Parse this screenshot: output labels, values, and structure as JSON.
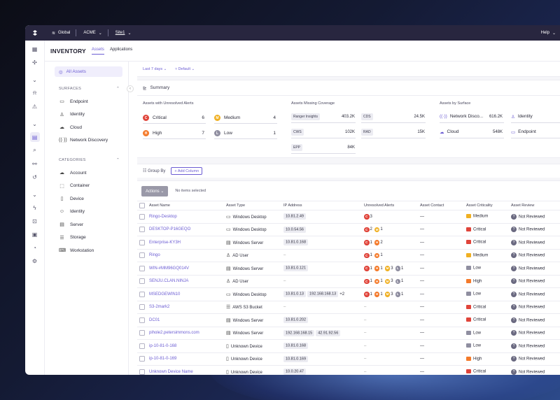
{
  "colors": {
    "accent": "#6c5dd3",
    "critical": "#e0443a",
    "high": "#f47a2a",
    "medium": "#f0b022",
    "low": "#8f8ea0",
    "unknown": "#6a6980",
    "topbar": "#28263f"
  },
  "topbar": {
    "org": "Global",
    "account": "ACME",
    "site": "Site1",
    "help": "Help"
  },
  "page": {
    "title": "INVENTORY",
    "tabs": [
      {
        "label": "Assets"
      },
      {
        "label": "Applications"
      }
    ]
  },
  "sidebar": {
    "all_assets": "All Assets",
    "surfaces_heading": "SURFACES",
    "surfaces": [
      {
        "label": "Endpoint",
        "icon": "monitor-icon"
      },
      {
        "label": "Identity",
        "icon": "user-icon"
      },
      {
        "label": "Cloud",
        "icon": "cloud-icon"
      },
      {
        "label": "Network Discovery",
        "icon": "signal-icon"
      }
    ],
    "categories_heading": "CATEGORIES",
    "categories": [
      {
        "label": "Account",
        "icon": "cloud-icon"
      },
      {
        "label": "Container",
        "icon": "box-icon"
      },
      {
        "label": "Device",
        "icon": "device-icon"
      },
      {
        "label": "Identity",
        "icon": "user-circle-icon"
      },
      {
        "label": "Server",
        "icon": "server-icon"
      },
      {
        "label": "Storage",
        "icon": "storage-icon"
      },
      {
        "label": "Workstation",
        "icon": "laptop-icon"
      }
    ]
  },
  "filters": {
    "time": "Last 7 days",
    "view": "Default"
  },
  "summary": {
    "title": "Summary",
    "alerts": {
      "title": "Assets with Unresolved Alerts",
      "items": [
        {
          "label": "Critical",
          "value": "6",
          "badge": "C"
        },
        {
          "label": "Medium",
          "value": "4",
          "badge": "M"
        },
        {
          "label": "High",
          "value": "7",
          "badge": "H"
        },
        {
          "label": "Low",
          "value": "1",
          "badge": "L"
        }
      ]
    },
    "coverage": {
      "title": "Assets Missing Coverage",
      "items": [
        {
          "label": "Ranger Insights",
          "value": "403.2K"
        },
        {
          "label": "CDS",
          "value": "24.5K"
        },
        {
          "label": "CWS",
          "value": "102K"
        },
        {
          "label": "RAD",
          "value": "15K"
        },
        {
          "label": "EPP",
          "value": "84K"
        }
      ]
    },
    "surface": {
      "title": "Assets by Surface",
      "items": [
        {
          "label": "Network Disco...",
          "value": "616.2K"
        },
        {
          "label": "Identity",
          "value": ""
        },
        {
          "label": "Cloud",
          "value": "548K"
        },
        {
          "label": "Endpoint",
          "value": ""
        }
      ]
    }
  },
  "toolbar": {
    "group_by": "Group By",
    "add_column": "+ Add Column",
    "actions": "Actions",
    "selection": "No items selected"
  },
  "table": {
    "columns": [
      "Asset Name",
      "Asset Type",
      "IP Address",
      "Unresolved Alerts",
      "Asset Contact",
      "Asset Criticality",
      "Asset Review"
    ],
    "rows": [
      {
        "name": "Ringo-Desktop",
        "type": "Windows Desktop",
        "ticon": "desktop-icon",
        "ips": [
          "10.81.2.49"
        ],
        "alerts": [
          {
            "s": "C",
            "n": "3"
          }
        ],
        "contact": "—",
        "crit": "Medium",
        "review": "Not Reviewed"
      },
      {
        "name": "DESKTOP-P16GEQO",
        "type": "Windows Desktop",
        "ticon": "desktop-icon",
        "ips": [
          "10.0.54.56"
        ],
        "alerts": [
          {
            "s": "C",
            "n": "2"
          },
          {
            "s": "M",
            "n": "1"
          }
        ],
        "contact": "—",
        "crit": "Critical",
        "review": "Not Reviewed"
      },
      {
        "name": "Enterprise-KY3H",
        "type": "Windows Server",
        "ticon": "server-icon",
        "ips": [
          "10.81.0.168"
        ],
        "alerts": [
          {
            "s": "C",
            "n": "1"
          },
          {
            "s": "H",
            "n": "2"
          }
        ],
        "contact": "—",
        "crit": "Critical",
        "review": "Not Reviewed"
      },
      {
        "name": "Ringo",
        "type": "AD User",
        "ticon": "user-icon",
        "ips": [],
        "alerts": [
          {
            "s": "C",
            "n": "1"
          },
          {
            "s": "H",
            "n": "1"
          }
        ],
        "contact": "—",
        "crit": "Medium",
        "review": "Not Reviewed"
      },
      {
        "name": "WIN-#MM96GQ014V",
        "type": "Windows Server",
        "ticon": "server-icon",
        "ips": [
          "10.81.0.121"
        ],
        "alerts": [
          {
            "s": "C",
            "n": "1"
          },
          {
            "s": "H",
            "n": "1"
          },
          {
            "s": "M",
            "n": "3"
          },
          {
            "s": "L",
            "n": "1"
          }
        ],
        "contact": "—",
        "crit": "Low",
        "review": "Not Reviewed"
      },
      {
        "name": "SENJU.CLAN.NINJA",
        "type": "AD User",
        "ticon": "user-icon",
        "ips": [],
        "alerts": [
          {
            "s": "C",
            "n": "1"
          },
          {
            "s": "H",
            "n": "1"
          },
          {
            "s": "M",
            "n": "3"
          },
          {
            "s": "L",
            "n": "1"
          }
        ],
        "contact": "—",
        "crit": "High",
        "review": "Not Reviewed"
      },
      {
        "name": "MSEDGEWIN10",
        "type": "Windows Desktop",
        "ticon": "desktop-icon",
        "ips": [
          "10.81.0.13",
          "192.168.168.13"
        ],
        "ipmore": "+2",
        "alerts": [
          {
            "s": "C",
            "n": "1"
          },
          {
            "s": "H",
            "n": "1"
          },
          {
            "s": "M",
            "n": "3"
          },
          {
            "s": "L",
            "n": "1"
          }
        ],
        "contact": "—",
        "crit": "Low",
        "review": "Not Reviewed"
      },
      {
        "name": "S3-2mark2",
        "type": "AWS S3 Bucket",
        "ticon": "storage-icon",
        "ips": [],
        "alerts": [],
        "contact": "—",
        "crit": "Critical",
        "review": "Not Reviewed"
      },
      {
        "name": "DC01",
        "type": "Windows Server",
        "ticon": "server-icon",
        "ips": [
          "10.81.0.202"
        ],
        "alerts": [],
        "contact": "—",
        "crit": "Critical",
        "review": "Not Reviewed"
      },
      {
        "name": "pihole2.petersimmons.com",
        "type": "Windows Server",
        "ticon": "server-icon",
        "ips": [
          "192.168.168.15",
          "42.91.92.56"
        ],
        "alerts": [],
        "contact": "—",
        "crit": "Low",
        "review": "Not Reviewed"
      },
      {
        "name": "ip-10-81-0-168",
        "type": "Unknown Device",
        "ticon": "device-icon",
        "ips": [
          "10.81.0.168"
        ],
        "alerts": [],
        "contact": "—",
        "crit": "Low",
        "review": "Not Reviewed"
      },
      {
        "name": "ip-10-81-0-169",
        "type": "Unknown Device",
        "ticon": "device-icon",
        "ips": [
          "10.81.0.169"
        ],
        "alerts": [],
        "contact": "—",
        "crit": "High",
        "review": "Not Reviewed"
      },
      {
        "name": "Unknown Device Name",
        "type": "Unknown Device",
        "ticon": "device-icon",
        "ips": [
          "10.0.20.47"
        ],
        "alerts": [],
        "contact": "—",
        "crit": "Critical",
        "review": "Not Reviewed"
      }
    ]
  }
}
